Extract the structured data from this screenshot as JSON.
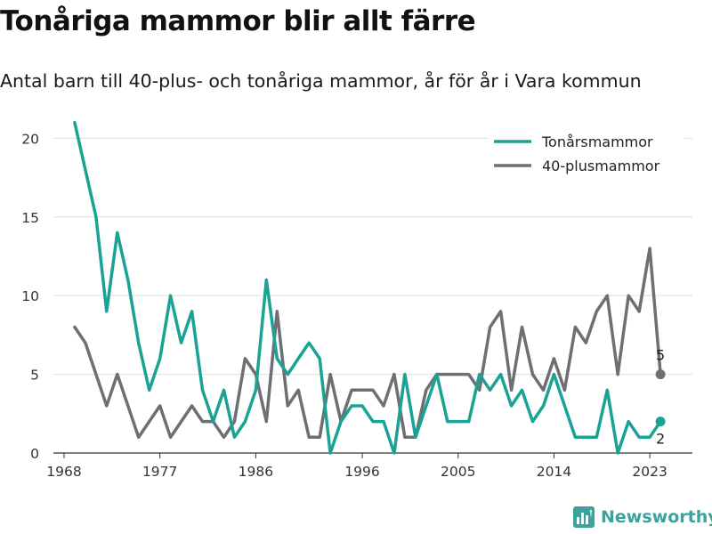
{
  "header": {
    "title": "Tonåriga mammor blir allt färre",
    "subtitle": "Antal barn till 40-plus- och tonåriga mammor, år för år i Vara kommun"
  },
  "brand": {
    "name": "Newsworthy",
    "color": "#3aa39c"
  },
  "chart_data": {
    "type": "line",
    "title": "Tonåriga mammor blir allt färre",
    "subtitle": "Antal barn till 40-plus- och tonåriga mammor, år för år i Vara kommun",
    "xlabel": "",
    "ylabel": "",
    "xlim": [
      1967,
      2027
    ],
    "ylim": [
      0,
      22
    ],
    "x_ticks": [
      1968,
      1977,
      1986,
      1996,
      2005,
      2014,
      2023
    ],
    "y_ticks": [
      0,
      5,
      10,
      15,
      20
    ],
    "grid": "horizontal",
    "legend_position": "top-right",
    "x": [
      1969,
      1970,
      1971,
      1972,
      1973,
      1974,
      1975,
      1976,
      1977,
      1978,
      1979,
      1980,
      1981,
      1982,
      1983,
      1984,
      1985,
      1986,
      1987,
      1988,
      1989,
      1990,
      1991,
      1992,
      1993,
      1994,
      1995,
      1996,
      1997,
      1998,
      1999,
      2000,
      2001,
      2002,
      2003,
      2004,
      2005,
      2006,
      2007,
      2008,
      2009,
      2010,
      2011,
      2012,
      2013,
      2014,
      2015,
      2016,
      2017,
      2018,
      2019,
      2020,
      2021,
      2022,
      2023,
      2024
    ],
    "series": [
      {
        "name": "Tonårsmammor",
        "color": "#1aa394",
        "values": [
          21,
          18,
          15,
          9,
          14,
          11,
          7,
          4,
          6,
          10,
          7,
          9,
          4,
          2,
          4,
          1,
          2,
          4,
          11,
          6,
          5,
          6,
          7,
          6,
          0,
          2,
          3,
          3,
          2,
          2,
          0,
          5,
          1,
          3,
          5,
          2,
          2,
          2,
          5,
          4,
          5,
          3,
          4,
          2,
          3,
          5,
          3,
          1,
          1,
          1,
          4,
          0,
          2,
          1,
          1,
          2
        ],
        "end_label": "2"
      },
      {
        "name": "40-plusmammor",
        "color": "#6e6e73",
        "values": [
          8,
          7,
          5,
          3,
          5,
          3,
          1,
          2,
          3,
          1,
          2,
          3,
          2,
          2,
          1,
          2,
          6,
          5,
          2,
          9,
          3,
          4,
          1,
          1,
          5,
          2,
          4,
          4,
          4,
          3,
          5,
          1,
          1,
          4,
          5,
          5,
          5,
          5,
          4,
          8,
          9,
          4,
          8,
          5,
          4,
          6,
          4,
          8,
          7,
          9,
          10,
          5,
          10,
          9,
          13,
          5
        ],
        "end_label": "5"
      }
    ]
  }
}
